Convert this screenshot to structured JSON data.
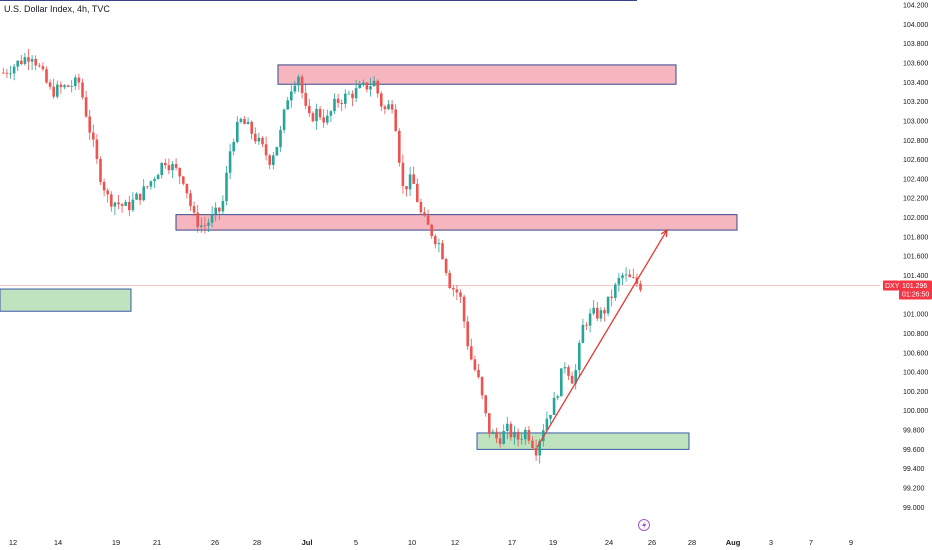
{
  "chart_data": {
    "type": "candlestick",
    "title": "U.S. Dollar Index, 4h, TVC",
    "symbol": "DXY",
    "last_price": "101.296",
    "countdown": "01:26:50",
    "y_ticks": [
      "104.200",
      "104.000",
      "103.800",
      "103.600",
      "103.400",
      "103.200",
      "103.000",
      "102.800",
      "102.600",
      "102.400",
      "102.200",
      "102.000",
      "101.800",
      "101.600",
      "101.400",
      "101.200",
      "101.000",
      "100.800",
      "100.600",
      "100.400",
      "100.200",
      "100.000",
      "99.800",
      "99.600",
      "99.400",
      "99.200",
      "99.000"
    ],
    "ylim": [
      98.9,
      104.25
    ],
    "x_ticks": [
      "12",
      "14",
      "19",
      "21",
      "26",
      "28",
      "Jul",
      "5",
      "10",
      "12",
      "17",
      "19",
      "24",
      "26",
      "28",
      "Aug",
      "3",
      "7",
      "9"
    ],
    "bold_x_ticks": [
      "Jul",
      "Aug"
    ],
    "price_path": [
      [
        0,
        103.5
      ],
      [
        3,
        103.7
      ],
      [
        5,
        103.3
      ],
      [
        8,
        103.4
      ],
      [
        10,
        102.5
      ],
      [
        11,
        102.2
      ],
      [
        13,
        102.1
      ],
      [
        15,
        102.3
      ],
      [
        17,
        102.6
      ],
      [
        19,
        102.4
      ],
      [
        20,
        102.0
      ],
      [
        21,
        101.9
      ],
      [
        23,
        102.1
      ],
      [
        24,
        102.8
      ],
      [
        25,
        103.0
      ],
      [
        26,
        102.9
      ],
      [
        28,
        102.6
      ],
      [
        29,
        102.8
      ],
      [
        30,
        103.3
      ],
      [
        31,
        103.5
      ],
      [
        32,
        103.0
      ],
      [
        33,
        103.1
      ],
      [
        34,
        103.0
      ],
      [
        35,
        103.2
      ],
      [
        37,
        103.3
      ],
      [
        39,
        103.4
      ],
      [
        40,
        103.1
      ],
      [
        41,
        103.2
      ],
      [
        42,
        102.3
      ],
      [
        43,
        102.4
      ],
      [
        44,
        102.0
      ],
      [
        45,
        101.85
      ],
      [
        46,
        101.7
      ],
      [
        47,
        101.3
      ],
      [
        48,
        101.2
      ],
      [
        49,
        100.6
      ],
      [
        50,
        100.3
      ],
      [
        51,
        99.8
      ],
      [
        52,
        99.7
      ],
      [
        53,
        99.8
      ],
      [
        54,
        99.7
      ],
      [
        55,
        99.8
      ],
      [
        56,
        99.6
      ],
      [
        57,
        99.9
      ],
      [
        58,
        100.1
      ],
      [
        59,
        100.5
      ],
      [
        60,
        100.3
      ],
      [
        61,
        100.9
      ],
      [
        62,
        101.0
      ],
      [
        63,
        101.0
      ],
      [
        64,
        101.2
      ],
      [
        65,
        101.4
      ],
      [
        66,
        101.35
      ],
      [
        67,
        101.3
      ]
    ],
    "zones": [
      {
        "type": "resistance",
        "low": 103.38,
        "high": 103.58,
        "from": "28",
        "to": "26"
      },
      {
        "type": "resistance",
        "low": 101.87,
        "high": 102.03,
        "from": "21",
        "to": "28"
      },
      {
        "type": "support",
        "low": 101.03,
        "high": 101.26,
        "from": "",
        "to": "19"
      },
      {
        "type": "support",
        "low": 99.6,
        "high": 99.77,
        "from": "12",
        "to": "26"
      }
    ],
    "trendline": {
      "from": [
        55,
        99.62
      ],
      "to": [
        65.7,
        101.87
      ],
      "arrow": true
    },
    "colors": {
      "up": "#26a69a",
      "down": "#ef5350",
      "resistance_fill": "#f6b6c0",
      "resistance_border": "#3a4a8a",
      "support_fill": "#bfe3be",
      "support_border": "#3a5aa8",
      "trendline": "#e53935",
      "price_line": "#f5a6a6",
      "badge": "#f23645"
    },
    "event_icon": "lightning-icon"
  }
}
